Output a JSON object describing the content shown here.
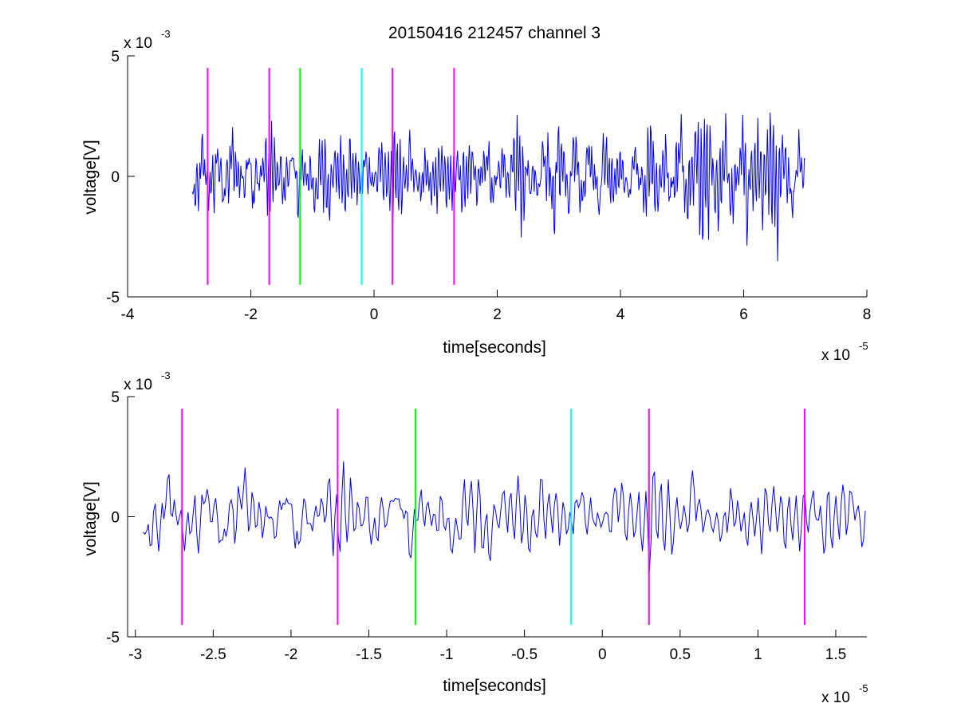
{
  "figure": {
    "title": "20150416 212457 channel 3"
  },
  "chart_data": [
    {
      "type": "line",
      "title": "20150416 212457 channel 3",
      "xlabel": "time[seconds]",
      "ylabel": "voltage[V]",
      "x_multiplier": {
        "base": "x 10",
        "exponent": "-5"
      },
      "y_multiplier": {
        "base": "x 10",
        "exponent": "-3"
      },
      "xlim": [
        -4,
        8
      ],
      "ylim": [
        -5,
        5
      ],
      "x_ticks": [
        -4,
        -2,
        0,
        2,
        4,
        6,
        8
      ],
      "x_tick_labels": [
        "-4",
        "-2",
        "0",
        "2",
        "4",
        "6",
        "8"
      ],
      "y_ticks": [
        -5,
        0,
        5
      ],
      "y_tick_labels": [
        "-5",
        "0",
        "5"
      ],
      "grid": false,
      "signal": {
        "color": "#0000ff",
        "x_start": -2.95,
        "x_end": 7.0,
        "seed": 12345,
        "envelope_points": [
          [
            -2.95,
            1.2
          ],
          [
            -2.0,
            1.2
          ],
          [
            -0.5,
            0.9
          ],
          [
            1.0,
            0.9
          ],
          [
            2.0,
            0.85
          ],
          [
            2.5,
            1.6
          ],
          [
            3.5,
            1.5
          ],
          [
            4.0,
            1.0
          ],
          [
            4.5,
            1.2
          ],
          [
            5.0,
            1.7
          ],
          [
            6.0,
            1.5
          ],
          [
            7.0,
            1.1
          ]
        ]
      },
      "markers": [
        {
          "x": -2.7,
          "color": "#ff00ff"
        },
        {
          "x": -1.7,
          "color": "#ff00ff"
        },
        {
          "x": -1.2,
          "color": "#00ff00"
        },
        {
          "x": -0.2,
          "color": "#00ffff"
        },
        {
          "x": 0.3,
          "color": "#ff00ff"
        },
        {
          "x": 1.3,
          "color": "#ff00ff"
        }
      ],
      "marker_span": [
        -4.5,
        4.5
      ]
    },
    {
      "type": "line",
      "title": "",
      "xlabel": "time[seconds]",
      "ylabel": "voltage[V]",
      "x_multiplier": {
        "base": "x 10",
        "exponent": "-5"
      },
      "y_multiplier": {
        "base": "x 10",
        "exponent": "-3"
      },
      "xlim": [
        -3.05,
        1.7
      ],
      "ylim": [
        -5,
        5
      ],
      "x_ticks": [
        -3,
        -2.5,
        -2,
        -1.5,
        -1,
        -0.5,
        0,
        0.5,
        1,
        1.5
      ],
      "x_tick_labels": [
        "-3",
        "-2.5",
        "-2",
        "-1.5",
        "-1",
        "-0.5",
        "0",
        "0.5",
        "1",
        "1.5"
      ],
      "y_ticks": [
        -5,
        0,
        5
      ],
      "y_tick_labels": [
        "-5",
        "0",
        "5"
      ],
      "grid": false,
      "signal": {
        "color": "#0000ff",
        "x_start": -2.95,
        "x_end": 1.7,
        "seed": 12345,
        "envelope_points": [
          [
            -2.95,
            1.2
          ],
          [
            -2.0,
            1.2
          ],
          [
            -0.5,
            0.9
          ],
          [
            1.0,
            0.9
          ],
          [
            1.7,
            0.9
          ]
        ]
      },
      "markers": [
        {
          "x": -2.7,
          "color": "#ff00ff"
        },
        {
          "x": -1.7,
          "color": "#ff00ff"
        },
        {
          "x": -1.2,
          "color": "#00ff00"
        },
        {
          "x": -0.2,
          "color": "#00ffff"
        },
        {
          "x": 0.3,
          "color": "#ff00ff"
        },
        {
          "x": 1.3,
          "color": "#ff00ff"
        }
      ],
      "marker_span": [
        -4.5,
        4.5
      ]
    }
  ]
}
